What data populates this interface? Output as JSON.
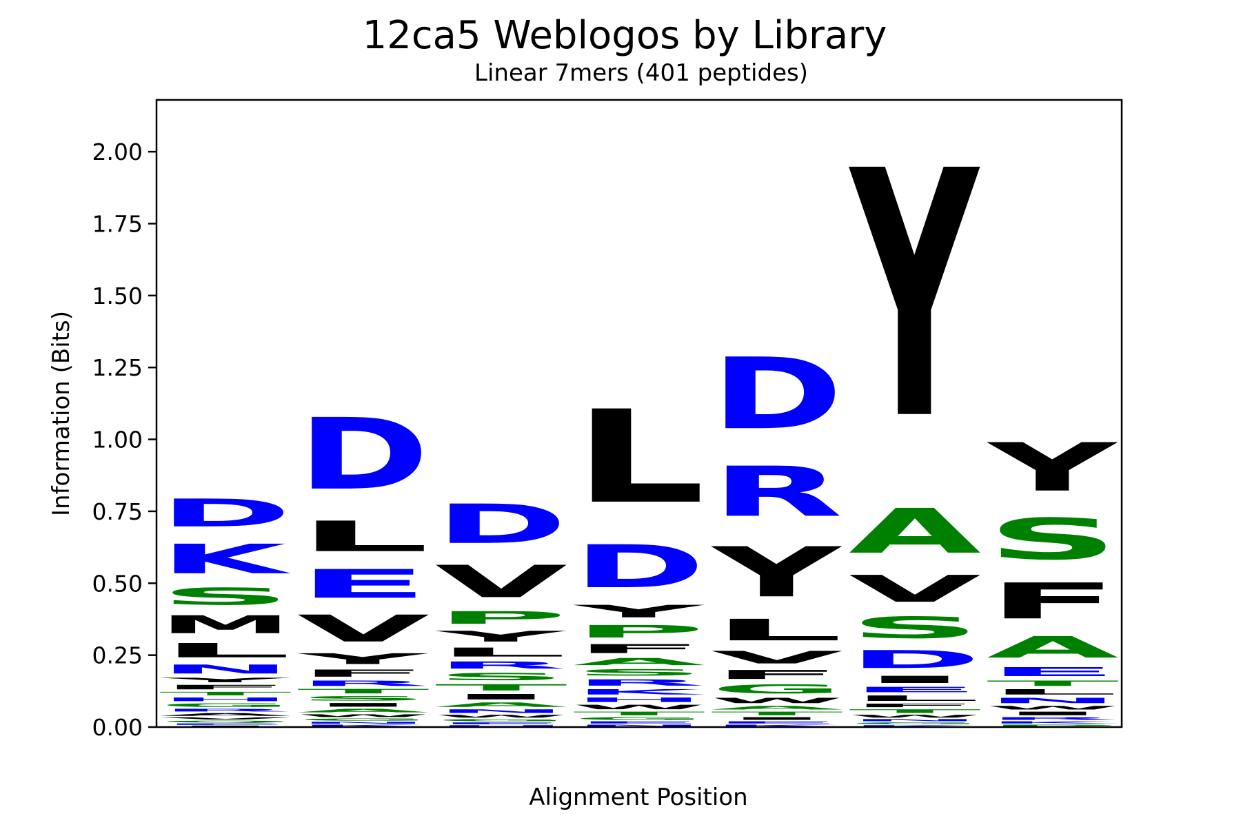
{
  "chart_data": {
    "type": "sequence-logo",
    "title": "12ca5 Weblogos by Library",
    "subtitle": "Linear 7mers (401 peptides)",
    "xlabel": "Alignment Position",
    "ylabel": "Information (Bits)",
    "ylim": [
      0,
      2.18
    ],
    "yticks": [
      "0.00",
      "0.25",
      "0.50",
      "0.75",
      "1.00",
      "1.25",
      "1.50",
      "1.75",
      "2.00"
    ],
    "ytick_values": [
      0,
      0.25,
      0.5,
      0.75,
      1.0,
      1.25,
      1.5,
      1.75,
      2.0
    ],
    "colors": {
      "acidic_basic": "#0000ff",
      "polar": "#008000",
      "hydrophobic": "#000000"
    },
    "positions": [
      {
        "position": 1,
        "stack": [
          {
            "letter": "I",
            "bits": 0.006,
            "color": "#000000"
          },
          {
            "letter": "E",
            "bits": 0.008,
            "color": "#0000ff"
          },
          {
            "letter": "Q",
            "bits": 0.01,
            "color": "#008000"
          },
          {
            "letter": "V",
            "bits": 0.012,
            "color": "#000000"
          },
          {
            "letter": "A",
            "bits": 0.015,
            "color": "#000000"
          },
          {
            "letter": "R",
            "bits": 0.015,
            "color": "#0000ff"
          },
          {
            "letter": "G",
            "bits": 0.02,
            "color": "#008000"
          },
          {
            "letter": "H",
            "bits": 0.02,
            "color": "#0000ff"
          },
          {
            "letter": "T",
            "bits": 0.02,
            "color": "#008000"
          },
          {
            "letter": "F",
            "bits": 0.025,
            "color": "#000000"
          },
          {
            "letter": "Y",
            "bits": 0.025,
            "color": "#000000"
          },
          {
            "letter": "N",
            "bits": 0.05,
            "color": "#0000ff"
          },
          {
            "letter": "L",
            "bits": 0.08,
            "color": "#000000"
          },
          {
            "letter": "M",
            "bits": 0.1,
            "color": "#000000"
          },
          {
            "letter": "S",
            "bits": 0.095,
            "color": "#008000"
          },
          {
            "letter": "K",
            "bits": 0.165,
            "color": "#0000ff"
          },
          {
            "letter": "D",
            "bits": 0.155,
            "color": "#0000ff"
          }
        ]
      },
      {
        "position": 2,
        "stack": [
          {
            "letter": "K",
            "bits": 0.01,
            "color": "#0000ff"
          },
          {
            "letter": "N",
            "bits": 0.01,
            "color": "#0000ff"
          },
          {
            "letter": "G",
            "bits": 0.012,
            "color": "#008000"
          },
          {
            "letter": "W",
            "bits": 0.015,
            "color": "#000000"
          },
          {
            "letter": "A",
            "bits": 0.02,
            "color": "#008000"
          },
          {
            "letter": "I",
            "bits": 0.02,
            "color": "#000000"
          },
          {
            "letter": "S",
            "bits": 0.025,
            "color": "#008000"
          },
          {
            "letter": "T",
            "bits": 0.025,
            "color": "#008000"
          },
          {
            "letter": "R",
            "bits": 0.03,
            "color": "#0000ff"
          },
          {
            "letter": "F",
            "bits": 0.04,
            "color": "#000000"
          },
          {
            "letter": "Y",
            "bits": 0.06,
            "color": "#000000"
          },
          {
            "letter": "V",
            "bits": 0.15,
            "color": "#000000"
          },
          {
            "letter": "E",
            "bits": 0.16,
            "color": "#0000ff"
          },
          {
            "letter": "L",
            "bits": 0.17,
            "color": "#000000"
          },
          {
            "letter": "D",
            "bits": 0.4,
            "color": "#0000ff"
          }
        ]
      },
      {
        "position": 3,
        "stack": [
          {
            "letter": "H",
            "bits": 0.008,
            "color": "#0000ff"
          },
          {
            "letter": "E",
            "bits": 0.01,
            "color": "#0000ff"
          },
          {
            "letter": "G",
            "bits": 0.012,
            "color": "#008000"
          },
          {
            "letter": "W",
            "bits": 0.015,
            "color": "#000000"
          },
          {
            "letter": "N",
            "bits": 0.02,
            "color": "#0000ff"
          },
          {
            "letter": "A",
            "bits": 0.025,
            "color": "#008000"
          },
          {
            "letter": "I",
            "bits": 0.03,
            "color": "#000000"
          },
          {
            "letter": "T",
            "bits": 0.035,
            "color": "#008000"
          },
          {
            "letter": "S",
            "bits": 0.04,
            "color": "#008000"
          },
          {
            "letter": "R",
            "bits": 0.04,
            "color": "#0000ff"
          },
          {
            "letter": "L",
            "bits": 0.05,
            "color": "#000000"
          },
          {
            "letter": "Y",
            "bits": 0.06,
            "color": "#000000"
          },
          {
            "letter": "P",
            "bits": 0.07,
            "color": "#008000"
          },
          {
            "letter": "V",
            "bits": 0.18,
            "color": "#000000"
          },
          {
            "letter": "D",
            "bits": 0.22,
            "color": "#0000ff"
          }
        ]
      },
      {
        "position": 4,
        "stack": [
          {
            "letter": "N",
            "bits": 0.01,
            "color": "#0000ff"
          },
          {
            "letter": "E",
            "bits": 0.012,
            "color": "#0000ff"
          },
          {
            "letter": "G",
            "bits": 0.015,
            "color": "#008000"
          },
          {
            "letter": "T",
            "bits": 0.02,
            "color": "#008000"
          },
          {
            "letter": "W",
            "bits": 0.025,
            "color": "#000000"
          },
          {
            "letter": "H",
            "bits": 0.025,
            "color": "#0000ff"
          },
          {
            "letter": "K",
            "bits": 0.03,
            "color": "#0000ff"
          },
          {
            "letter": "R",
            "bits": 0.035,
            "color": "#0000ff"
          },
          {
            "letter": "S",
            "bits": 0.035,
            "color": "#008000"
          },
          {
            "letter": "A",
            "bits": 0.04,
            "color": "#008000"
          },
          {
            "letter": "F",
            "bits": 0.05,
            "color": "#000000"
          },
          {
            "letter": "P",
            "bits": 0.07,
            "color": "#008000"
          },
          {
            "letter": "Y",
            "bits": 0.07,
            "color": "#000000"
          },
          {
            "letter": "D",
            "bits": 0.24,
            "color": "#0000ff"
          },
          {
            "letter": "L",
            "bits": 0.52,
            "color": "#000000"
          }
        ]
      },
      {
        "position": 5,
        "stack": [
          {
            "letter": "K",
            "bits": 0.01,
            "color": "#0000ff"
          },
          {
            "letter": "E",
            "bits": 0.012,
            "color": "#0000ff"
          },
          {
            "letter": "I",
            "bits": 0.015,
            "color": "#000000"
          },
          {
            "letter": "T",
            "bits": 0.02,
            "color": "#008000"
          },
          {
            "letter": "A",
            "bits": 0.02,
            "color": "#008000"
          },
          {
            "letter": "W",
            "bits": 0.03,
            "color": "#000000"
          },
          {
            "letter": "G",
            "bits": 0.05,
            "color": "#008000"
          },
          {
            "letter": "F",
            "bits": 0.05,
            "color": "#000000"
          },
          {
            "letter": "V",
            "bits": 0.07,
            "color": "#000000"
          },
          {
            "letter": "L",
            "bits": 0.12,
            "color": "#000000"
          },
          {
            "letter": "Y",
            "bits": 0.28,
            "color": "#000000"
          },
          {
            "letter": "R",
            "bits": 0.28,
            "color": "#0000ff"
          },
          {
            "letter": "D",
            "bits": 0.4,
            "color": "#0000ff"
          }
        ]
      },
      {
        "position": 6,
        "stack": [
          {
            "letter": "K",
            "bits": 0.008,
            "color": "#0000ff"
          },
          {
            "letter": "G",
            "bits": 0.01,
            "color": "#008000"
          },
          {
            "letter": "N",
            "bits": 0.012,
            "color": "#0000ff"
          },
          {
            "letter": "W",
            "bits": 0.015,
            "color": "#000000"
          },
          {
            "letter": "T",
            "bits": 0.02,
            "color": "#008000"
          },
          {
            "letter": "F",
            "bits": 0.02,
            "color": "#000000"
          },
          {
            "letter": "L",
            "bits": 0.03,
            "color": "#000000"
          },
          {
            "letter": "E",
            "bits": 0.03,
            "color": "#0000ff"
          },
          {
            "letter": "I",
            "bits": 0.04,
            "color": "#000000"
          },
          {
            "letter": "D",
            "bits": 0.1,
            "color": "#0000ff"
          },
          {
            "letter": "S",
            "bits": 0.12,
            "color": "#008000"
          },
          {
            "letter": "V",
            "bits": 0.15,
            "color": "#000000"
          },
          {
            "letter": "A",
            "bits": 0.25,
            "color": "#008000"
          },
          {
            "letter": "Y",
            "bits": 1.38,
            "color": "#000000"
          }
        ]
      },
      {
        "position": 7,
        "stack": [
          {
            "letter": "P",
            "bits": 0.01,
            "color": "#008000"
          },
          {
            "letter": "K",
            "bits": 0.012,
            "color": "#0000ff"
          },
          {
            "letter": "R",
            "bits": 0.015,
            "color": "#0000ff"
          },
          {
            "letter": "I",
            "bits": 0.02,
            "color": "#000000"
          },
          {
            "letter": "W",
            "bits": 0.02,
            "color": "#000000"
          },
          {
            "letter": "N",
            "bits": 0.03,
            "color": "#0000ff"
          },
          {
            "letter": "L",
            "bits": 0.03,
            "color": "#000000"
          },
          {
            "letter": "T",
            "bits": 0.03,
            "color": "#008000"
          },
          {
            "letter": "E",
            "bits": 0.05,
            "color": "#0000ff"
          },
          {
            "letter": "A",
            "bits": 0.12,
            "color": "#008000"
          },
          {
            "letter": "F",
            "bits": 0.2,
            "color": "#000000"
          },
          {
            "letter": "S",
            "bits": 0.23,
            "color": "#008000"
          },
          {
            "letter": "Y",
            "bits": 0.27,
            "color": "#000000"
          }
        ]
      }
    ]
  }
}
